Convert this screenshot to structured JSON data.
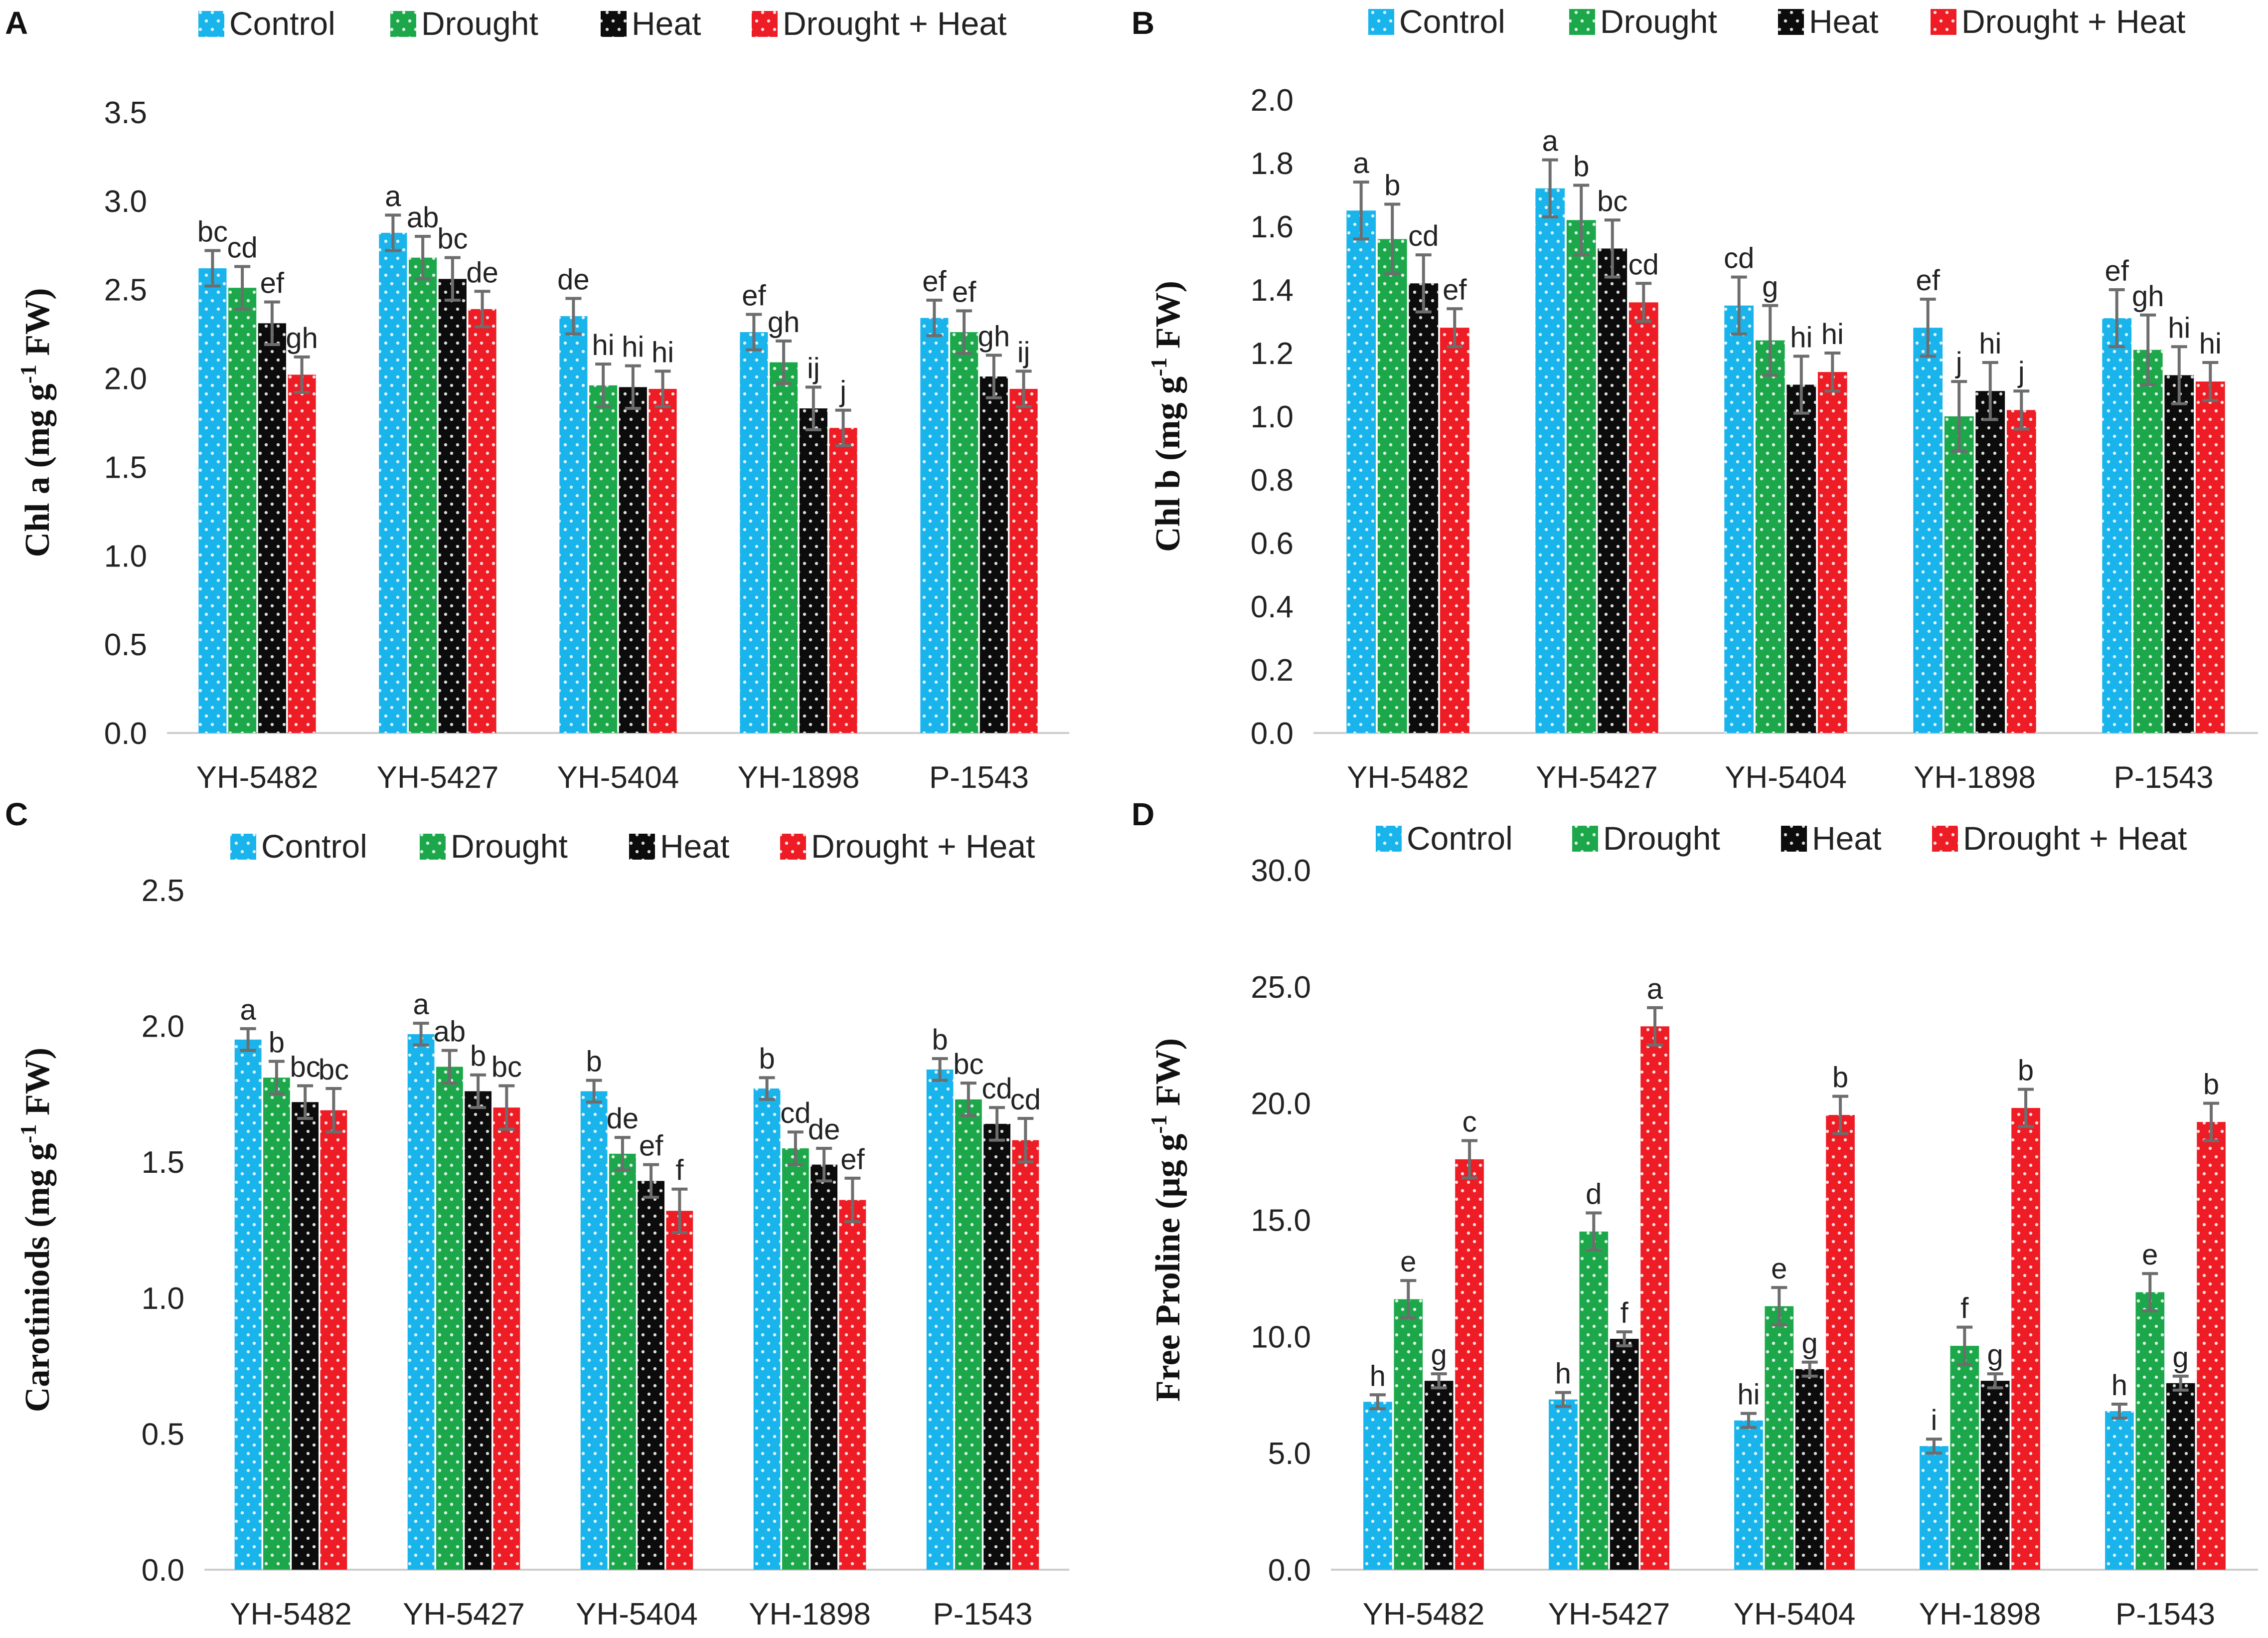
{
  "colors": {
    "Control": "#19b4ec",
    "Drought": "#1ca84a",
    "Heat": "#0c0c0c",
    "Drought + Heat": "#ee1c24"
  },
  "chart_data": [
    {
      "id": "A",
      "type": "bar",
      "panel_label": "A",
      "ylabel_main": "Chl a (mg g",
      "ylabel_sup": "-1",
      "ylabel_tail": " FW)",
      "categories": [
        "YH-5482",
        "YH-5427",
        "YH-5404",
        "YH-1898",
        "P-1543"
      ],
      "legend": [
        "Control",
        "Drought",
        "Heat",
        "Drought + Heat"
      ],
      "legend_position": "top",
      "ylim": [
        0,
        3.5
      ],
      "yticks": [
        "0.0",
        "0.5",
        "1.0",
        "1.5",
        "2.0",
        "2.5",
        "3.0",
        "3.5"
      ],
      "series": [
        {
          "name": "Control",
          "values": [
            2.62,
            2.82,
            2.35,
            2.26,
            2.34
          ],
          "errors": [
            0.1,
            0.1,
            0.1,
            0.1,
            0.1
          ],
          "letters": [
            "bc",
            "a",
            "de",
            "ef",
            "ef"
          ]
        },
        {
          "name": "Drought",
          "values": [
            2.51,
            2.68,
            1.96,
            2.09,
            2.26
          ],
          "errors": [
            0.12,
            0.12,
            0.12,
            0.12,
            0.12
          ],
          "letters": [
            "cd",
            "ab",
            "hi",
            "gh",
            "ef"
          ]
        },
        {
          "name": "Heat",
          "values": [
            2.31,
            2.56,
            1.95,
            1.83,
            2.01
          ],
          "errors": [
            0.12,
            0.12,
            0.12,
            0.12,
            0.12
          ],
          "letters": [
            "ef",
            "bc",
            "hi",
            "ij",
            "gh"
          ]
        },
        {
          "name": "Drought + Heat",
          "values": [
            2.02,
            2.39,
            1.94,
            1.72,
            1.94
          ],
          "errors": [
            0.1,
            0.1,
            0.1,
            0.1,
            0.1
          ],
          "letters": [
            "gh",
            "de",
            "hi",
            "j",
            "ij"
          ]
        }
      ]
    },
    {
      "id": "B",
      "type": "bar",
      "panel_label": "B",
      "ylabel_main": "Chl b (mg g",
      "ylabel_sup": "-1",
      "ylabel_tail": " FW)",
      "categories": [
        "YH-5482",
        "YH-5427",
        "YH-5404",
        "YH-1898",
        "P-1543"
      ],
      "legend": [
        "Control",
        "Drought",
        "Heat",
        "Drought + Heat"
      ],
      "legend_position": "top",
      "ylim": [
        0,
        2.0
      ],
      "yticks": [
        "0.0",
        "0.2",
        "0.4",
        "0.6",
        "0.8",
        "1.0",
        "1.2",
        "1.4",
        "1.6",
        "1.8",
        "2.0"
      ],
      "series": [
        {
          "name": "Control",
          "values": [
            1.65,
            1.72,
            1.35,
            1.28,
            1.31
          ],
          "errors": [
            0.09,
            0.09,
            0.09,
            0.09,
            0.09
          ],
          "letters": [
            "a",
            "a",
            "cd",
            "ef",
            "ef"
          ]
        },
        {
          "name": "Drought",
          "values": [
            1.56,
            1.62,
            1.24,
            1.0,
            1.21
          ],
          "errors": [
            0.11,
            0.11,
            0.11,
            0.11,
            0.11
          ],
          "letters": [
            "b",
            "b",
            "g",
            "j",
            "gh"
          ]
        },
        {
          "name": "Heat",
          "values": [
            1.42,
            1.53,
            1.1,
            1.08,
            1.13
          ],
          "errors": [
            0.09,
            0.09,
            0.09,
            0.09,
            0.09
          ],
          "letters": [
            "cd",
            "bc",
            "hi",
            "hi",
            "hi"
          ]
        },
        {
          "name": "Drought + Heat",
          "values": [
            1.28,
            1.36,
            1.14,
            1.02,
            1.11
          ],
          "errors": [
            0.06,
            0.06,
            0.06,
            0.06,
            0.06
          ],
          "letters": [
            "ef",
            "cd",
            "hi",
            "j",
            "hi"
          ]
        }
      ]
    },
    {
      "id": "C",
      "type": "bar",
      "panel_label": "C",
      "ylabel_main": "Carotiniods (mg g",
      "ylabel_sup": "-1",
      "ylabel_tail": " FW)",
      "categories": [
        "YH-5482",
        "YH-5427",
        "YH-5404",
        "YH-1898",
        "P-1543"
      ],
      "legend": [
        "Control",
        "Drought",
        "Heat",
        "Drought + Heat"
      ],
      "legend_position": "top",
      "ylim": [
        0,
        2.5
      ],
      "yticks": [
        "0.0",
        "0.5",
        "1.0",
        "1.5",
        "2.0",
        "2.5"
      ],
      "series": [
        {
          "name": "Control",
          "values": [
            1.95,
            1.97,
            1.76,
            1.77,
            1.84
          ],
          "errors": [
            0.04,
            0.04,
            0.04,
            0.04,
            0.04
          ],
          "letters": [
            "a",
            "a",
            "b",
            "b",
            "b"
          ]
        },
        {
          "name": "Drought",
          "values": [
            1.81,
            1.85,
            1.53,
            1.55,
            1.73
          ],
          "errors": [
            0.06,
            0.06,
            0.06,
            0.06,
            0.06
          ],
          "letters": [
            "b",
            "ab",
            "de",
            "cd",
            "bc"
          ]
        },
        {
          "name": "Heat",
          "values": [
            1.72,
            1.76,
            1.43,
            1.49,
            1.64
          ],
          "errors": [
            0.06,
            0.06,
            0.06,
            0.06,
            0.06
          ],
          "letters": [
            "bc",
            "b",
            "ef",
            "de",
            "cd"
          ]
        },
        {
          "name": "Drought + Heat",
          "values": [
            1.69,
            1.7,
            1.32,
            1.36,
            1.58
          ],
          "errors": [
            0.08,
            0.08,
            0.08,
            0.08,
            0.08
          ],
          "letters": [
            "bc",
            "bc",
            "f",
            "ef",
            "cd"
          ]
        }
      ]
    },
    {
      "id": "D",
      "type": "bar",
      "panel_label": "D",
      "ylabel_main": "Free Proline (µg g",
      "ylabel_sup": "-1",
      "ylabel_tail": " FW)",
      "categories": [
        "YH-5482",
        "YH-5427",
        "YH-5404",
        "YH-1898",
        "P-1543"
      ],
      "legend": [
        "Control",
        "Drought",
        "Heat",
        "Drought + Heat"
      ],
      "legend_position": "top",
      "ylim": [
        0,
        30
      ],
      "yticks": [
        "0.0",
        "5.0",
        "10.0",
        "15.0",
        "20.0",
        "25.0",
        "30.0"
      ],
      "series": [
        {
          "name": "Control",
          "values": [
            7.2,
            7.3,
            6.4,
            5.3,
            6.8
          ],
          "errors": [
            0.3,
            0.3,
            0.3,
            0.3,
            0.3
          ],
          "letters": [
            "h",
            "h",
            "hi",
            "i",
            "h"
          ]
        },
        {
          "name": "Drought",
          "values": [
            11.6,
            14.5,
            11.3,
            9.6,
            11.9
          ],
          "errors": [
            0.8,
            0.8,
            0.8,
            0.8,
            0.8
          ],
          "letters": [
            "e",
            "d",
            "e",
            "f",
            "e"
          ]
        },
        {
          "name": "Heat",
          "values": [
            8.1,
            9.9,
            8.6,
            8.1,
            8.0
          ],
          "errors": [
            0.3,
            0.3,
            0.3,
            0.3,
            0.3
          ],
          "letters": [
            "g",
            "f",
            "g",
            "g",
            "g"
          ]
        },
        {
          "name": "Drought + Heat",
          "values": [
            17.6,
            23.3,
            19.5,
            19.8,
            19.2
          ],
          "errors": [
            0.8,
            0.8,
            0.8,
            0.8,
            0.8
          ],
          "letters": [
            "c",
            "a",
            "b",
            "b",
            "b"
          ]
        }
      ]
    }
  ]
}
